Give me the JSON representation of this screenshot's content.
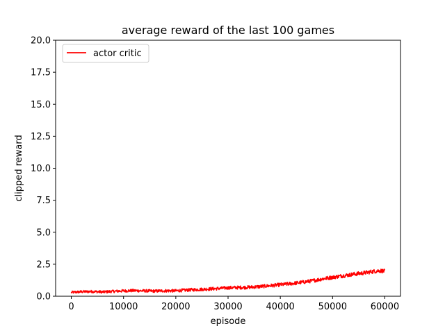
{
  "chart_data": {
    "type": "line",
    "title": "average reward of the last 100 games",
    "xlabel": "episode",
    "ylabel": "clipped reward",
    "xlim": [
      -3000,
      63000
    ],
    "ylim": [
      0,
      20
    ],
    "xticks": [
      0,
      10000,
      20000,
      30000,
      40000,
      50000,
      60000
    ],
    "xtick_labels": [
      "0",
      "10000",
      "20000",
      "30000",
      "40000",
      "50000",
      "60000"
    ],
    "yticks": [
      0,
      2.5,
      5,
      7.5,
      10,
      12.5,
      15,
      17.5,
      20
    ],
    "ytick_labels": [
      "0.0",
      "2.5",
      "5.0",
      "7.5",
      "10.0",
      "12.5",
      "15.0",
      "17.5",
      "20.0"
    ],
    "grid": false,
    "legend_position": "top-left",
    "series": [
      {
        "name": "actor critic",
        "color": "#ff0000",
        "x": [
          0,
          2000,
          4000,
          6000,
          8000,
          10000,
          12000,
          14000,
          16000,
          18000,
          20000,
          22000,
          24000,
          26000,
          28000,
          30000,
          32000,
          34000,
          36000,
          38000,
          40000,
          42000,
          44000,
          46000,
          48000,
          50000,
          52000,
          54000,
          56000,
          58000,
          59000,
          60000
        ],
        "y": [
          0.3,
          0.35,
          0.37,
          0.33,
          0.38,
          0.42,
          0.44,
          0.42,
          0.4,
          0.43,
          0.42,
          0.48,
          0.52,
          0.56,
          0.6,
          0.66,
          0.68,
          0.7,
          0.75,
          0.82,
          0.9,
          0.98,
          1.08,
          1.2,
          1.35,
          1.48,
          1.6,
          1.72,
          1.82,
          1.95,
          2.0,
          1.95
        ]
      }
    ]
  }
}
